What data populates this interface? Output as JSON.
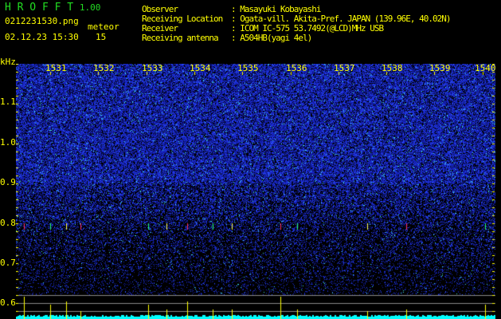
{
  "app": {
    "name": "H R O F F T",
    "version": "1.00"
  },
  "file": {
    "name": "0212231530.png",
    "datetime": "02.12.23 15:30"
  },
  "count": {
    "label": "meteor",
    "value": "15"
  },
  "info": {
    "labels": [
      "Observer",
      "Receiving Location",
      "Receiver",
      "Receiving antenna"
    ],
    "values": [
      ": Masayuki Kobayashi",
      ": Ogata-vill. Akita-Pref. JAPAN (139.96E, 40.02N)",
      ": ICOM IC-575 53.7492(@LCD)MHz USB",
      ": A504HB(yagi 4el)"
    ]
  },
  "axis": {
    "y_unit": "kHz",
    "y_ticks": [
      "1.1",
      "1.0",
      "0.9",
      "0.8",
      "0.7",
      "0.6"
    ],
    "x_ticks": [
      "1531",
      "1532",
      "1533",
      "1534",
      "1535",
      "1536",
      "1537",
      "1538",
      "1539",
      "1540"
    ]
  },
  "colors": {
    "text": "#ffff00",
    "title": "#22dd22",
    "background": "#000000",
    "noise": "#1a2ad0",
    "histogram": "#00ffff"
  }
}
